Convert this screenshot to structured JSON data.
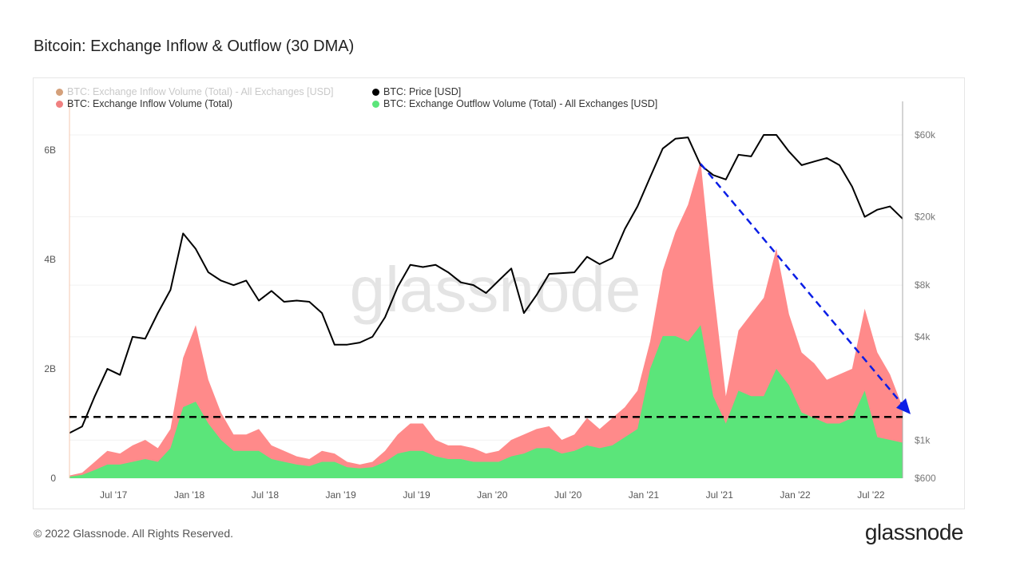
{
  "title": "Bitcoin: Exchange Inflow & Outflow (30 DMA)",
  "footer": "© 2022 Glassnode. All Rights Reserved.",
  "logo": "glassnode",
  "watermark": "glassnode",
  "colors": {
    "inflow_usd": "#d4a07a",
    "price": "#000000",
    "inflow": "#ff8a8a",
    "outflow": "#5be57a",
    "arrow": "#0a1ee6",
    "baseline": "#000000"
  },
  "legend": [
    {
      "label": "BTC: Exchange Inflow Volume (Total) - All Exchanges [USD]",
      "color": "#d4a07a",
      "dimmed": true
    },
    {
      "label": "BTC: Price [USD]",
      "color": "#000000",
      "dimmed": false
    },
    {
      "label": "BTC: Exchange Inflow Volume (Total)",
      "color": "#f08080",
      "dimmed": false
    },
    {
      "label": "BTC: Exchange Outflow Volume (Total) - All Exchanges [USD]",
      "color": "#5be57a",
      "dimmed": false
    }
  ],
  "chart_data": {
    "type": "area",
    "x_range": [
      "2017-03",
      "2022-09"
    ],
    "x_ticks": [
      "Jul '17",
      "Jan '18",
      "Jul '18",
      "Jan '19",
      "Jul '19",
      "Jan '20",
      "Jul '20",
      "Jan '21",
      "Jul '21",
      "Jan '22",
      "Jul '22"
    ],
    "y_left": {
      "ticks": [
        "0",
        "2B",
        "4B",
        "6B"
      ],
      "tick_values": [
        0,
        2,
        4,
        6
      ],
      "unit": "B",
      "range": [
        0,
        6.9
      ]
    },
    "y_right": {
      "scale": "log",
      "ticks": [
        "$600",
        "$1k",
        "$4k",
        "$8k",
        "$20k",
        "$60k"
      ],
      "tick_values": [
        600,
        1000,
        4000,
        8000,
        20000,
        60000
      ],
      "range": [
        600,
        60000
      ]
    },
    "grid": true,
    "legend_position": "top-left",
    "x": [
      "2017-03",
      "2017-04",
      "2017-05",
      "2017-06",
      "2017-07",
      "2017-08",
      "2017-09",
      "2017-10",
      "2017-11",
      "2017-12",
      "2018-01",
      "2018-02",
      "2018-03",
      "2018-04",
      "2018-05",
      "2018-06",
      "2018-07",
      "2018-08",
      "2018-09",
      "2018-10",
      "2018-11",
      "2018-12",
      "2019-01",
      "2019-02",
      "2019-03",
      "2019-04",
      "2019-05",
      "2019-06",
      "2019-07",
      "2019-08",
      "2019-09",
      "2019-10",
      "2019-11",
      "2019-12",
      "2020-01",
      "2020-02",
      "2020-03",
      "2020-04",
      "2020-05",
      "2020-06",
      "2020-07",
      "2020-08",
      "2020-09",
      "2020-10",
      "2020-11",
      "2020-12",
      "2021-01",
      "2021-02",
      "2021-03",
      "2021-04",
      "2021-05",
      "2021-06",
      "2021-07",
      "2021-08",
      "2021-09",
      "2021-10",
      "2021-11",
      "2021-12",
      "2022-01",
      "2022-02",
      "2022-03",
      "2022-04",
      "2022-05",
      "2022-06",
      "2022-07",
      "2022-08",
      "2022-09"
    ],
    "series": [
      {
        "name": "BTC: Exchange Inflow Volume (Total)",
        "axis": "left",
        "values": [
          0.05,
          0.1,
          0.3,
          0.5,
          0.45,
          0.6,
          0.7,
          0.55,
          0.9,
          2.2,
          2.8,
          1.8,
          1.2,
          0.8,
          0.8,
          0.9,
          0.6,
          0.5,
          0.4,
          0.35,
          0.5,
          0.45,
          0.3,
          0.25,
          0.3,
          0.5,
          0.8,
          1.0,
          1.0,
          0.7,
          0.6,
          0.6,
          0.55,
          0.45,
          0.5,
          0.7,
          0.8,
          0.9,
          0.95,
          0.7,
          0.8,
          1.1,
          0.9,
          1.1,
          1.3,
          1.6,
          2.5,
          3.8,
          4.5,
          5.0,
          5.8,
          3.5,
          1.5,
          2.7,
          3.0,
          3.3,
          4.2,
          3.0,
          2.3,
          2.1,
          1.8,
          1.9,
          2.0,
          3.1,
          2.3,
          1.9,
          1.3
        ]
      },
      {
        "name": "BTC: Exchange Outflow Volume (Total) - All Exchanges [USD]",
        "axis": "left",
        "values": [
          0.03,
          0.06,
          0.15,
          0.25,
          0.25,
          0.3,
          0.35,
          0.3,
          0.55,
          1.3,
          1.4,
          1.0,
          0.7,
          0.5,
          0.5,
          0.5,
          0.35,
          0.3,
          0.25,
          0.22,
          0.3,
          0.3,
          0.2,
          0.18,
          0.2,
          0.3,
          0.45,
          0.5,
          0.5,
          0.4,
          0.35,
          0.35,
          0.3,
          0.3,
          0.3,
          0.4,
          0.45,
          0.55,
          0.55,
          0.45,
          0.5,
          0.6,
          0.55,
          0.6,
          0.75,
          0.9,
          2.0,
          2.6,
          2.6,
          2.5,
          2.8,
          1.5,
          1.0,
          1.6,
          1.5,
          1.5,
          2.0,
          1.7,
          1.2,
          1.1,
          1.0,
          1.0,
          1.1,
          1.6,
          0.75,
          0.7,
          0.65
        ]
      },
      {
        "name": "BTC: Price [USD]",
        "axis": "right",
        "values": [
          1100,
          1200,
          1800,
          2600,
          2400,
          4000,
          3900,
          5500,
          7500,
          16000,
          13000,
          9500,
          8500,
          8000,
          8500,
          6500,
          7400,
          6400,
          6500,
          6400,
          5500,
          3600,
          3600,
          3700,
          4000,
          5200,
          7800,
          10500,
          10200,
          10500,
          9500,
          8300,
          8000,
          7200,
          8500,
          10000,
          5500,
          7000,
          9300,
          9400,
          9500,
          11700,
          10600,
          11500,
          17000,
          23000,
          34000,
          50000,
          57000,
          58000,
          40000,
          35000,
          33000,
          46000,
          45000,
          60000,
          60000,
          48000,
          40000,
          42000,
          44000,
          40000,
          30000,
          20000,
          22000,
          23000,
          19500
        ]
      }
    ],
    "annotations": [
      {
        "type": "horizontal-dashed-line",
        "axis": "left",
        "value": 1.12,
        "color": "#000000"
      },
      {
        "type": "dashed-arrow",
        "color": "#0a1ee6",
        "from": {
          "x": "2021-05",
          "y": 5.75
        },
        "to": {
          "x": "2022-09",
          "y": 1.17
        }
      }
    ]
  }
}
